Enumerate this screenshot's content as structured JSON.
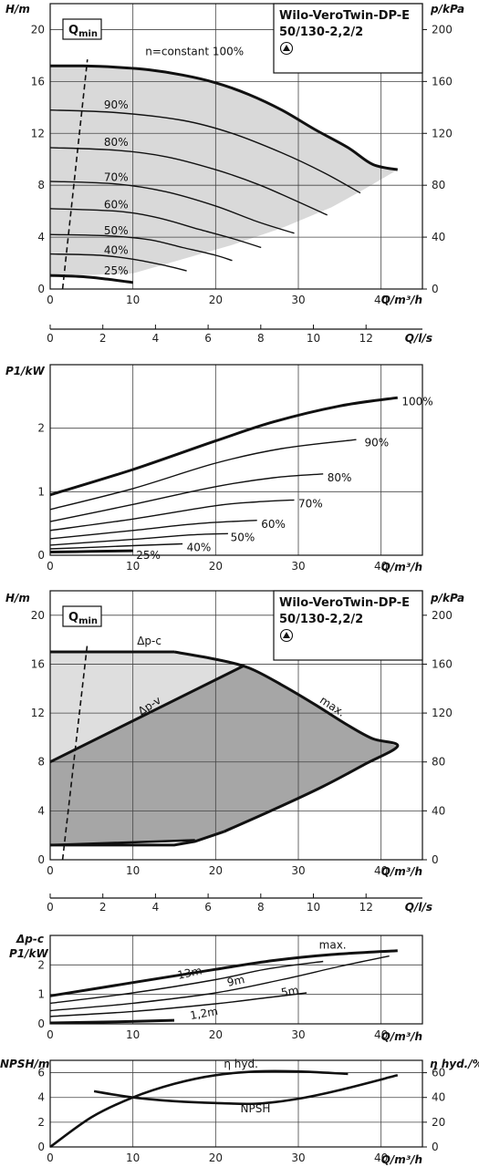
{
  "chart_data": [
    {
      "id": "head_curves",
      "type": "line",
      "title_lines": [
        "Wilo-VeroTwin-DP-E",
        "50/130-2,2/2"
      ],
      "xlabel": "Q/m³/h",
      "ylabel": "H/m",
      "ylabel_right": "p/kPa",
      "xlim": [
        0,
        45
      ],
      "ylim": [
        0,
        22
      ],
      "x_ticks": [
        0,
        10,
        20,
        30,
        40
      ],
      "y_ticks": [
        0,
        4,
        8,
        12,
        16,
        20
      ],
      "y_right_ticks": [
        0,
        40,
        80,
        120,
        160,
        200
      ],
      "qmin_label": "Q",
      "qmin_sub": "min",
      "qmin_line": [
        [
          1.5,
          0
        ],
        [
          4.5,
          17.7
        ]
      ],
      "shaded_region": [
        [
          0,
          17.2
        ],
        [
          3,
          17.2
        ],
        [
          8,
          17.1
        ],
        [
          12,
          16.9
        ],
        [
          16,
          16.5
        ],
        [
          20,
          15.9
        ],
        [
          24,
          15.0
        ],
        [
          28,
          13.8
        ],
        [
          32,
          12.3
        ],
        [
          36,
          10.9
        ],
        [
          39,
          9.6
        ],
        [
          42,
          9.2
        ],
        [
          38,
          7.7
        ],
        [
          34,
          6.3
        ],
        [
          28,
          4.7
        ],
        [
          22,
          3.4
        ],
        [
          16,
          2.3
        ],
        [
          10,
          1.2
        ],
        [
          0,
          1.0
        ]
      ],
      "series": [
        {
          "name": "n=constant 100%",
          "label": "n=constant 100%",
          "bold": true,
          "points": [
            [
              0,
              17.2
            ],
            [
              4,
              17.2
            ],
            [
              8,
              17.1
            ],
            [
              12,
              16.9
            ],
            [
              16,
              16.5
            ],
            [
              20,
              15.9
            ],
            [
              24,
              15.0
            ],
            [
              28,
              13.8
            ],
            [
              32,
              12.3
            ],
            [
              36,
              10.9
            ],
            [
              39,
              9.6
            ],
            [
              42,
              9.2
            ]
          ]
        },
        {
          "name": "90%",
          "label": "90%",
          "points": [
            [
              0,
              13.8
            ],
            [
              8,
              13.6
            ],
            [
              16,
              13.0
            ],
            [
              22,
              12.0
            ],
            [
              28,
              10.5
            ],
            [
              33,
              9.0
            ],
            [
              37.5,
              7.4
            ]
          ]
        },
        {
          "name": "80%",
          "label": "80%",
          "points": [
            [
              0,
              10.9
            ],
            [
              8,
              10.7
            ],
            [
              14,
              10.2
            ],
            [
              20,
              9.2
            ],
            [
              25,
              8.1
            ],
            [
              29,
              7.0
            ],
            [
              33.5,
              5.7
            ]
          ]
        },
        {
          "name": "70%",
          "label": "70%",
          "points": [
            [
              0,
              8.3
            ],
            [
              8,
              8.1
            ],
            [
              14,
              7.5
            ],
            [
              20,
              6.4
            ],
            [
              25,
              5.2
            ],
            [
              29.5,
              4.3
            ]
          ]
        },
        {
          "name": "60%",
          "label": "60%",
          "points": [
            [
              0,
              6.2
            ],
            [
              8,
              6.0
            ],
            [
              13,
              5.5
            ],
            [
              18,
              4.6
            ],
            [
              22,
              3.9
            ],
            [
              25.5,
              3.2
            ]
          ]
        },
        {
          "name": "50%",
          "label": "50%",
          "points": [
            [
              0,
              4.2
            ],
            [
              7,
              4.1
            ],
            [
              12,
              3.8
            ],
            [
              16,
              3.2
            ],
            [
              20,
              2.6
            ],
            [
              22,
              2.2
            ]
          ]
        },
        {
          "name": "40%",
          "label": "40%",
          "points": [
            [
              0,
              2.7
            ],
            [
              6,
              2.6
            ],
            [
              10,
              2.3
            ],
            [
              14,
              1.8
            ],
            [
              16.5,
              1.4
            ]
          ]
        },
        {
          "name": "25%",
          "label": "25%",
          "bold": true,
          "points": [
            [
              0,
              1.05
            ],
            [
              4,
              0.95
            ],
            [
              7,
              0.75
            ],
            [
              10,
              0.5
            ]
          ]
        }
      ]
    },
    {
      "id": "flow_ls_axis_1",
      "type": "axis",
      "xlabel": "Q/l/s",
      "ticks": [
        0,
        2,
        4,
        6,
        8,
        10,
        12
      ]
    },
    {
      "id": "power_curves",
      "type": "line",
      "xlabel": "Q/m³/h",
      "ylabel": "P1/kW",
      "xlim": [
        0,
        45
      ],
      "ylim": [
        0,
        3
      ],
      "x_ticks": [
        0,
        10,
        20,
        30,
        40
      ],
      "y_ticks": [
        0,
        1,
        2
      ],
      "series": [
        {
          "name": "100%",
          "label": "100%",
          "bold": true,
          "points": [
            [
              0,
              0.95
            ],
            [
              10,
              1.35
            ],
            [
              20,
              1.8
            ],
            [
              27,
              2.1
            ],
            [
              35,
              2.35
            ],
            [
              42,
              2.48
            ]
          ]
        },
        {
          "name": "90%",
          "label": "90%",
          "points": [
            [
              0,
              0.72
            ],
            [
              10,
              1.05
            ],
            [
              20,
              1.45
            ],
            [
              28,
              1.68
            ],
            [
              37,
              1.82
            ]
          ]
        },
        {
          "name": "80%",
          "label": "80%",
          "points": [
            [
              0,
              0.53
            ],
            [
              10,
              0.8
            ],
            [
              20,
              1.08
            ],
            [
              27,
              1.22
            ],
            [
              33,
              1.28
            ]
          ]
        },
        {
          "name": "70%",
          "label": "70%",
          "points": [
            [
              0,
              0.39
            ],
            [
              10,
              0.57
            ],
            [
              20,
              0.78
            ],
            [
              25,
              0.84
            ],
            [
              29.5,
              0.87
            ]
          ]
        },
        {
          "name": "60%",
          "label": "60%",
          "points": [
            [
              0,
              0.26
            ],
            [
              10,
              0.39
            ],
            [
              18,
              0.5
            ],
            [
              25,
              0.55
            ]
          ]
        },
        {
          "name": "50%",
          "label": "50%",
          "points": [
            [
              0,
              0.16
            ],
            [
              10,
              0.25
            ],
            [
              17,
              0.32
            ],
            [
              21.5,
              0.34
            ]
          ]
        },
        {
          "name": "40%",
          "label": "40%",
          "points": [
            [
              0,
              0.1
            ],
            [
              10,
              0.15
            ],
            [
              16,
              0.18
            ]
          ]
        },
        {
          "name": "25%",
          "label": "25%",
          "bold": true,
          "points": [
            [
              0,
              0.05
            ],
            [
              5,
              0.06
            ],
            [
              10,
              0.07
            ]
          ]
        }
      ]
    },
    {
      "id": "control_modes",
      "type": "area",
      "title_lines": [
        "Wilo-VeroTwin-DP-E",
        "50/130-2,2/2"
      ],
      "xlabel": "Q/m³/h",
      "ylabel": "H/m",
      "ylabel_right": "p/kPa",
      "xlim": [
        0,
        45
      ],
      "ylim": [
        0,
        22
      ],
      "x_ticks": [
        0,
        10,
        20,
        30,
        40
      ],
      "y_ticks": [
        0,
        4,
        8,
        12,
        16,
        20
      ],
      "y_right_ticks": [
        0,
        40,
        80,
        120,
        160,
        200
      ],
      "qmin_label": "Q",
      "qmin_sub": "min",
      "qmin_line": [
        [
          1.5,
          0
        ],
        [
          4.5,
          17.7
        ]
      ],
      "labels": {
        "dpc": "Δp-c",
        "dpv": "Δp-v",
        "max": "max."
      },
      "light_region": [
        [
          0,
          17.0
        ],
        [
          15,
          17.0
        ],
        [
          23.5,
          15.9
        ],
        [
          0,
          8.0
        ]
      ],
      "dark_region": [
        [
          0,
          8.0
        ],
        [
          23.5,
          15.9
        ],
        [
          28,
          14.3
        ],
        [
          32,
          12.7
        ],
        [
          36,
          11.0
        ],
        [
          39,
          9.9
        ],
        [
          42,
          9.3
        ],
        [
          38,
          7.8
        ],
        [
          33,
          6.0
        ],
        [
          27,
          4.1
        ],
        [
          21,
          2.3
        ],
        [
          17.5,
          1.5
        ],
        [
          0,
          1.2
        ]
      ],
      "max_curve": [
        [
          15,
          17.0
        ],
        [
          20,
          16.4
        ],
        [
          24,
          15.7
        ],
        [
          28,
          14.3
        ],
        [
          32,
          12.7
        ],
        [
          36,
          11.0
        ],
        [
          39,
          9.9
        ],
        [
          42,
          9.3
        ],
        [
          38,
          7.8
        ],
        [
          33,
          6.0
        ],
        [
          27,
          4.1
        ],
        [
          21,
          2.3
        ],
        [
          17.5,
          1.5
        ],
        [
          15,
          1.2
        ],
        [
          0,
          1.2
        ]
      ],
      "dpc_line": [
        [
          0,
          17.0
        ],
        [
          15,
          17.0
        ]
      ],
      "dpv_line": [
        [
          0,
          8.0
        ],
        [
          23.5,
          15.9
        ]
      ],
      "min_line": [
        [
          0,
          1.2
        ],
        [
          17.5,
          1.6
        ]
      ],
      "left_vertical": [
        [
          0,
          1.2
        ],
        [
          0,
          17.0
        ]
      ]
    },
    {
      "id": "flow_ls_axis_2",
      "type": "axis",
      "xlabel": "Q/l/s",
      "ticks": [
        0,
        2,
        4,
        6,
        8,
        10,
        12
      ]
    },
    {
      "id": "power_control",
      "type": "line",
      "xlabel": "Q/m³/h",
      "ylabel_top": "Δp-c",
      "ylabel": "P1/kW",
      "xlim": [
        0,
        45
      ],
      "ylim": [
        0,
        3
      ],
      "x_ticks": [
        0,
        10,
        20,
        30,
        40
      ],
      "y_ticks": [
        0,
        1,
        2
      ],
      "series": [
        {
          "name": "max.",
          "label": "max.",
          "bold": true,
          "points": [
            [
              0,
              0.95
            ],
            [
              10,
              1.4
            ],
            [
              20,
              1.85
            ],
            [
              27,
              2.15
            ],
            [
              34,
              2.35
            ],
            [
              42,
              2.48
            ]
          ]
        },
        {
          "name": "13m",
          "label": "13m",
          "points": [
            [
              0,
              0.7
            ],
            [
              10,
              1.05
            ],
            [
              20,
              1.5
            ],
            [
              26,
              1.85
            ],
            [
              33,
              2.12
            ]
          ]
        },
        {
          "name": "9m",
          "label": "9m",
          "points": [
            [
              0,
              0.45
            ],
            [
              10,
              0.7
            ],
            [
              20,
              1.05
            ],
            [
              28,
              1.5
            ],
            [
              35,
              1.95
            ],
            [
              41,
              2.3
            ]
          ]
        },
        {
          "name": "5m",
          "label": "5m",
          "points": [
            [
              0,
              0.25
            ],
            [
              10,
              0.42
            ],
            [
              20,
              0.68
            ],
            [
              26,
              0.88
            ],
            [
              31,
              1.05
            ]
          ]
        },
        {
          "name": "1,2m",
          "label": "1,2m",
          "bold": true,
          "points": [
            [
              0,
              0.03
            ],
            [
              8,
              0.07
            ],
            [
              15,
              0.12
            ]
          ]
        }
      ]
    },
    {
      "id": "npsh_efficiency",
      "type": "line",
      "xlabel": "Q/m³/h",
      "ylabel": "NPSH/m",
      "ylabel_right": "η hyd./%",
      "xlim": [
        0,
        45
      ],
      "ylim": [
        0,
        7
      ],
      "x_ticks": [
        0,
        10,
        20,
        30,
        40
      ],
      "y_ticks": [
        0,
        2,
        4,
        6
      ],
      "y_right_ticks": [
        0,
        20,
        40,
        60
      ],
      "series": [
        {
          "name": "η hyd.",
          "label": "η hyd.",
          "axis": "right",
          "bold": true,
          "points": [
            [
              0,
              0
            ],
            [
              5,
              24
            ],
            [
              10,
              40
            ],
            [
              15,
              51
            ],
            [
              20,
              58
            ],
            [
              25,
              61
            ],
            [
              30,
              61
            ],
            [
              36,
              59
            ]
          ]
        },
        {
          "name": "NPSH",
          "label": "NPSH",
          "bold": true,
          "points": [
            [
              5.3,
              4.5
            ],
            [
              10,
              4.0
            ],
            [
              15,
              3.7
            ],
            [
              20,
              3.55
            ],
            [
              25,
              3.5
            ],
            [
              30,
              3.9
            ],
            [
              35,
              4.6
            ],
            [
              42,
              5.8
            ]
          ]
        }
      ]
    }
  ]
}
